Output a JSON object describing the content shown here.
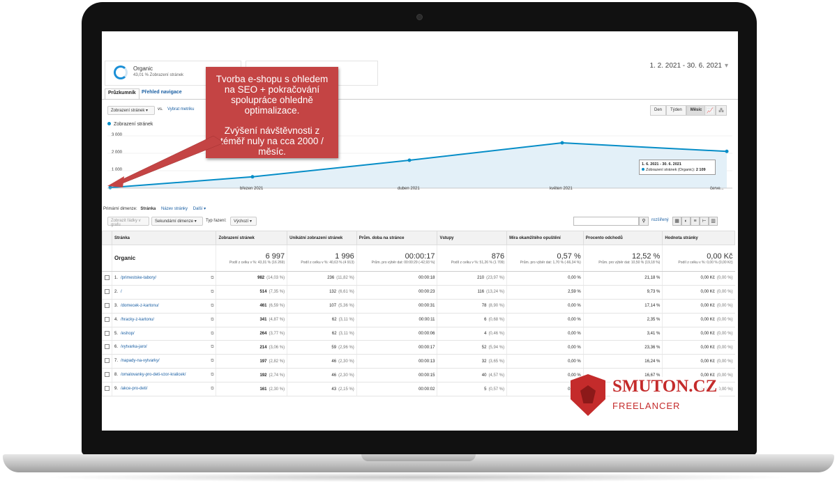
{
  "segment": {
    "name": "Organic",
    "sub": "43,01 % Zobrazení stránek"
  },
  "date_range": "1. 2. 2021 - 30. 6. 2021",
  "tabs": [
    "Průzkumník",
    "Přehled navigace"
  ],
  "controls": {
    "metric_select": "Zobrazení stránek",
    "vs": "vs.",
    "pick_metric": "Vybrat metriku",
    "periods": [
      "Den",
      "Týden",
      "Měsíc"
    ],
    "active_period": "Měsíc"
  },
  "callout": {
    "line1": "Tvorba e-shopu s ohledem na SEO + pokračování spolupráce ohledně optimalizace.",
    "line2": "Zvýšení návštěvnosti z téměř nuly na cca 2000 / měsíc."
  },
  "chart_data": {
    "type": "area",
    "series": [
      {
        "name": "Zobrazení stránek",
        "values": [
          30,
          650,
          1600,
          2600,
          2109
        ]
      }
    ],
    "x": [
      "únor 2021",
      "březen 2021",
      "duben 2021",
      "květen 2021",
      "červen 2021"
    ],
    "x_tick_labels": [
      "březen 2021",
      "duben 2021",
      "květen 2021",
      "červe..."
    ],
    "y_tick_labels": [
      "3 000",
      "2 000",
      "1 000"
    ],
    "ylim": [
      0,
      3000
    ],
    "grid": true,
    "color": "#058dc7",
    "tooltip": {
      "range": "1. 6. 2021 - 30. 6. 2021",
      "label": "Zobrazení stránek (Organic):",
      "value": "2 109"
    }
  },
  "primary_dimension": {
    "label": "Primární dimenze:",
    "active": "Stránka",
    "options": [
      "Název stránky",
      "Další"
    ]
  },
  "table_controls": {
    "plot_rows": "Zobrazit řádky v grafu",
    "secondary": "Sekundární dimenze",
    "sort_label": "Typ řazení:",
    "sort_value": "Výchozí",
    "advanced": "rozšířený"
  },
  "table": {
    "headers": [
      "Stránka",
      "Zobrazení stránek",
      "Unikátní zobrazení stránek",
      "Prům. doba na stránce",
      "Vstupy",
      "Míra okamžitého opuštění",
      "Procento odchodů",
      "Hodnota stránky"
    ],
    "totals": {
      "label": "Organic",
      "values": [
        "6 997",
        "1 996",
        "00:00:17",
        "876",
        "0,57 %",
        "12,52 %",
        "0,00 Kč"
      ],
      "subs": [
        "Podíl z celku v %: 43,01 % (16 269)",
        "Podíl z celku v %: 40,63 % (4 913)",
        "Prům. pro výběr dat: 00:00:29 (-42,93 %)",
        "Podíl z celku v %: 51,26 % (1 709)",
        "Prům. pro výběr dat: 1,70 % (-66,34 %)",
        "Prům. pro výběr dat: 10,50 % (19,18 %)",
        "Podíl z celku v %: 0,00 % (0,00 Kč)"
      ]
    },
    "rows": [
      {
        "n": "1.",
        "page": "/primestske-tabory/",
        "pv": "982",
        "pvp": "(14,03 %)",
        "upv": "236",
        "upvp": "(11,82 %)",
        "t": "00:00:18",
        "e": "210",
        "ep": "(23,97 %)",
        "b": "0,00 %",
        "x": "21,18 %",
        "v": "0,00 Kč",
        "vp": "(0,00 %)"
      },
      {
        "n": "2.",
        "page": "/",
        "pv": "514",
        "pvp": "(7,35 %)",
        "upv": "132",
        "upvp": "(6,61 %)",
        "t": "00:00:23",
        "e": "116",
        "ep": "(13,24 %)",
        "b": "2,59 %",
        "x": "9,73 %",
        "v": "0,00 Kč",
        "vp": "(0,00 %)"
      },
      {
        "n": "3.",
        "page": "/domecek-z-kartonu/",
        "pv": "461",
        "pvp": "(6,59 %)",
        "upv": "107",
        "upvp": "(5,36 %)",
        "t": "00:00:31",
        "e": "78",
        "ep": "(8,90 %)",
        "b": "0,00 %",
        "x": "17,14 %",
        "v": "0,00 Kč",
        "vp": "(0,00 %)"
      },
      {
        "n": "4.",
        "page": "/hracky-z-kartonu/",
        "pv": "341",
        "pvp": "(4,87 %)",
        "upv": "62",
        "upvp": "(3,11 %)",
        "t": "00:00:11",
        "e": "6",
        "ep": "(0,68 %)",
        "b": "0,00 %",
        "x": "2,35 %",
        "v": "0,00 Kč",
        "vp": "(0,00 %)"
      },
      {
        "n": "5.",
        "page": "/eshop/",
        "pv": "264",
        "pvp": "(3,77 %)",
        "upv": "62",
        "upvp": "(3,11 %)",
        "t": "00:00:06",
        "e": "4",
        "ep": "(0,46 %)",
        "b": "0,00 %",
        "x": "3,41 %",
        "v": "0,00 Kč",
        "vp": "(0,00 %)"
      },
      {
        "n": "6.",
        "page": "/vytvarka-jaro/",
        "pv": "214",
        "pvp": "(3,06 %)",
        "upv": "59",
        "upvp": "(2,96 %)",
        "t": "00:00:17",
        "e": "52",
        "ep": "(5,94 %)",
        "b": "0,00 %",
        "x": "23,36 %",
        "v": "0,00 Kč",
        "vp": "(0,00 %)"
      },
      {
        "n": "7.",
        "page": "/napady-na-vytvarky/",
        "pv": "197",
        "pvp": "(2,82 %)",
        "upv": "46",
        "upvp": "(2,30 %)",
        "t": "00:00:13",
        "e": "32",
        "ep": "(3,65 %)",
        "b": "0,00 %",
        "x": "16,24 %",
        "v": "0,00 Kč",
        "vp": "(0,00 %)"
      },
      {
        "n": "8.",
        "page": "/omalovanky-pro-deti-vzor-kralicek/",
        "pv": "192",
        "pvp": "(2,74 %)",
        "upv": "46",
        "upvp": "(2,30 %)",
        "t": "00:00:15",
        "e": "40",
        "ep": "(4,57 %)",
        "b": "0,00 %",
        "x": "16,67 %",
        "v": "0,00 Kč",
        "vp": "(0,00 %)"
      },
      {
        "n": "9.",
        "page": "/akce-pro-deti/",
        "pv": "161",
        "pvp": "(2,30 %)",
        "upv": "43",
        "upvp": "(2,15 %)",
        "t": "00:00:02",
        "e": "5",
        "ep": "(0,57 %)",
        "b": "0,00 %",
        "x": "",
        "v": "0,00 Kč",
        "vp": "(0,00 %)"
      }
    ]
  },
  "brand": {
    "name": "SMUTON.CZ",
    "sub": "FREELANCER",
    "color": "#c42b2b"
  }
}
